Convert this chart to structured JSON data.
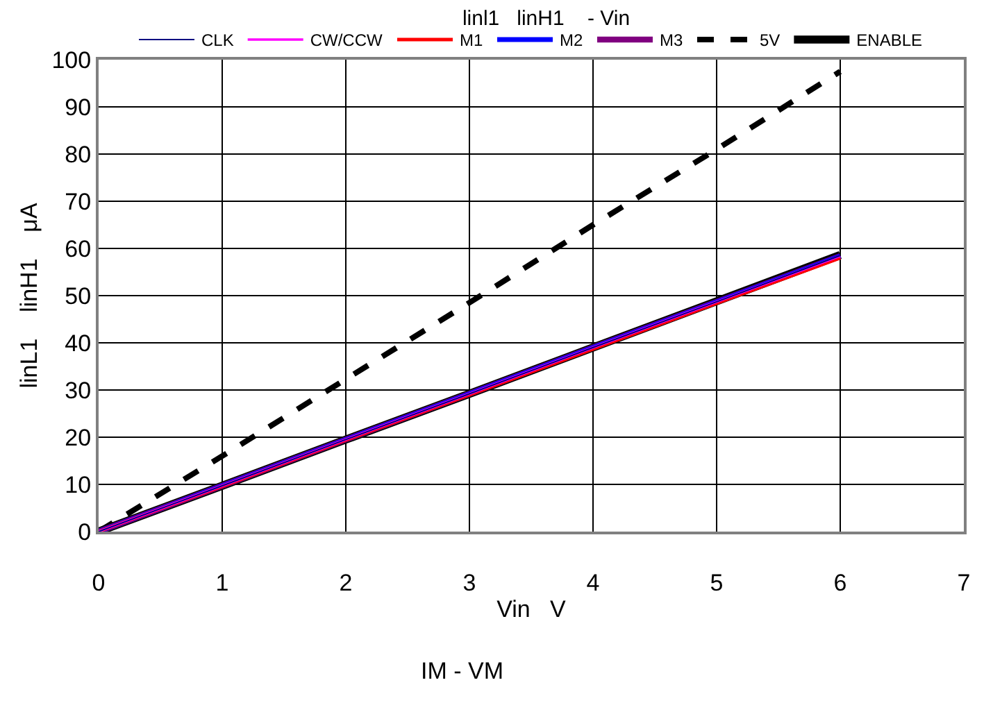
{
  "chart_data": {
    "type": "line",
    "title": "linl1   linH1    - Vin",
    "xlabel": "Vin   V",
    "ylabel": "linL1    linH1    μA",
    "annotations": [
      "IM - VM"
    ],
    "x": [
      0,
      1,
      2,
      3,
      4,
      5,
      6
    ],
    "series": [
      {
        "name": "CLK",
        "color": "#000080",
        "values": [
          0,
          9.7,
          19.5,
          29.2,
          39,
          48.7,
          58.5
        ]
      },
      {
        "name": "CW/CCW",
        "color": "#ff00ff",
        "values": [
          0,
          9.7,
          19.5,
          29.2,
          39,
          48.7,
          58.4
        ]
      },
      {
        "name": "M1",
        "color": "#ff0000",
        "values": [
          0,
          9.6,
          19.4,
          29,
          38.7,
          48.4,
          58
        ]
      },
      {
        "name": "M2",
        "color": "#0000ff",
        "values": [
          0,
          9.7,
          19.5,
          29.2,
          39,
          48.7,
          58.4
        ]
      },
      {
        "name": "M3",
        "color": "#800080",
        "values": [
          0,
          9.7,
          19.5,
          29.2,
          39,
          48.7,
          58.4
        ]
      },
      {
        "name": "5V",
        "color": "#000000",
        "line_style": "dashed",
        "values": [
          0,
          16,
          32.3,
          48.5,
          65,
          81,
          97.5
        ]
      },
      {
        "name": "ENABLE",
        "color": "#000000",
        "values": [
          0,
          9.7,
          19.5,
          29.2,
          39,
          48.8,
          58.6
        ]
      }
    ],
    "xlim": [
      0,
      7
    ],
    "xticks": [
      0,
      1,
      2,
      3,
      4,
      5,
      6,
      7
    ],
    "ylim": [
      0,
      100
    ],
    "yticks": [
      0,
      10,
      20,
      30,
      40,
      50,
      60,
      70,
      80,
      90,
      100
    ],
    "grid": true,
    "legend": "top",
    "marker": "none",
    "line_style": "solid"
  }
}
